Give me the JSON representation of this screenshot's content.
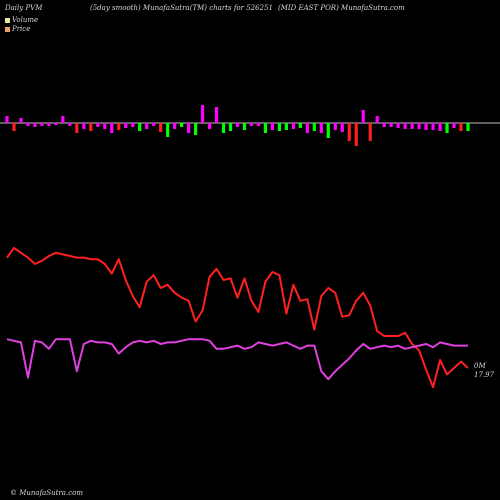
{
  "header": {
    "left": "Daily PVM",
    "middle": "(5day smooth) MunafaSutra(TM) charts for 526251",
    "right": "(MID EAST POR) MunafaSutra.com"
  },
  "legend": {
    "volume": "Volume",
    "price": "Price"
  },
  "footer": "© MunafaSutra.com",
  "last_labels": {
    "volume": "0M",
    "price": "17.97"
  },
  "colors": {
    "background": "#000000",
    "volume_swatch": "#e8e8a0",
    "price_swatch": "#f0a060",
    "up_bar": "#ff00ff",
    "down_bar": "#ff2020",
    "green_bar": "#00ff00",
    "price_line": "#ff2020",
    "volume_line": "#e040e0",
    "baseline": "#ffffff"
  },
  "chart_data": [
    {
      "type": "bar",
      "title": "",
      "xlabel": "",
      "ylabel": "",
      "grid": false,
      "series": [
        {
          "values": [
            7,
            -8,
            5,
            -3,
            -4,
            -3,
            -3,
            -2,
            7,
            -3,
            -10,
            -6,
            -8,
            -4,
            -6,
            -10,
            -7,
            -5,
            -4,
            -8,
            -6,
            -3,
            -9,
            -14,
            -6,
            -4,
            -10,
            -12,
            18,
            -6,
            16,
            -10,
            -8,
            -4,
            -7,
            -3,
            -3,
            -10,
            -7,
            -8,
            -7,
            -6,
            -5,
            -10,
            -8,
            -10,
            -15,
            -7,
            -9,
            -18,
            -23,
            13,
            -18,
            7,
            -4,
            -4,
            -5,
            -6,
            -6,
            -6,
            -7,
            -7,
            -8,
            -10,
            -5,
            -8,
            -8
          ]
        }
      ],
      "bar_colors": [
        "m",
        "r",
        "m",
        "m",
        "m",
        "m",
        "m",
        "m",
        "m",
        "m",
        "r",
        "m",
        "r",
        "m",
        "m",
        "m",
        "r",
        "m",
        "m",
        "g",
        "m",
        "m",
        "r",
        "g",
        "m",
        "g",
        "m",
        "g",
        "m",
        "m",
        "m",
        "g",
        "g",
        "m",
        "g",
        "m",
        "m",
        "g",
        "m",
        "g",
        "g",
        "m",
        "g",
        "m",
        "g",
        "m",
        "g",
        "m",
        "m",
        "r",
        "r",
        "m",
        "r",
        "m",
        "m",
        "m",
        "m",
        "m",
        "m",
        "m",
        "m",
        "m",
        "m",
        "g",
        "m",
        "r",
        "g"
      ]
    },
    {
      "type": "line",
      "title": "",
      "xlabel": "",
      "ylabel": "",
      "grid": false,
      "series": [
        {
          "name": "Price",
          "values": [
            0.11,
            0.05,
            0.08,
            0.11,
            0.15,
            0.13,
            0.1,
            0.08,
            0.09,
            0.1,
            0.11,
            0.11,
            0.12,
            0.12,
            0.15,
            0.21,
            0.12,
            0.25,
            0.35,
            0.42,
            0.26,
            0.22,
            0.3,
            0.28,
            0.33,
            0.36,
            0.38,
            0.51,
            0.44,
            0.23,
            0.18,
            0.25,
            0.24,
            0.36,
            0.24,
            0.38,
            0.45,
            0.26,
            0.2,
            0.22,
            0.46,
            0.28,
            0.38,
            0.37,
            0.56,
            0.35,
            0.3,
            0.33,
            0.48,
            0.47,
            0.38,
            0.33,
            0.41,
            0.57,
            0.6,
            0.6,
            0.6,
            0.58,
            0.65,
            0.69,
            0.81,
            0.92,
            0.75,
            0.84,
            0.8,
            0.76,
            0.8
          ]
        },
        {
          "name": "Volume",
          "values": [
            0.62,
            0.63,
            0.64,
            0.86,
            0.63,
            0.64,
            0.68,
            0.62,
            0.62,
            0.62,
            0.82,
            0.65,
            0.63,
            0.64,
            0.64,
            0.65,
            0.71,
            0.67,
            0.64,
            0.63,
            0.64,
            0.63,
            0.65,
            0.64,
            0.64,
            0.63,
            0.62,
            0.62,
            0.62,
            0.63,
            0.68,
            0.68,
            0.67,
            0.66,
            0.68,
            0.67,
            0.64,
            0.65,
            0.66,
            0.65,
            0.64,
            0.66,
            0.68,
            0.66,
            0.66,
            0.82,
            0.87,
            0.82,
            0.78,
            0.74,
            0.69,
            0.65,
            0.68,
            0.67,
            0.66,
            0.67,
            0.66,
            0.68,
            0.67,
            0.66,
            0.65,
            0.67,
            0.64,
            0.65,
            0.66,
            0.66,
            0.66
          ]
        }
      ]
    }
  ]
}
